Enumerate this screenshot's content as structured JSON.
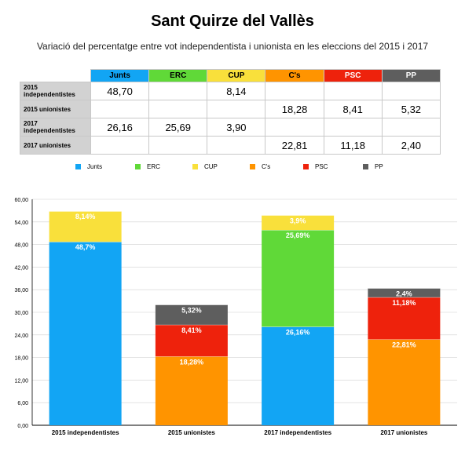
{
  "title": "Sant Quirze del Vallès",
  "subtitle": "Variació del percentatge entre vot independentista i unionista en les eleccions del 2015 i 2017",
  "parties": [
    {
      "name": "Junts",
      "color": "#12a5f4",
      "header_text_color": "#000000"
    },
    {
      "name": "ERC",
      "color": "#60d938",
      "header_text_color": "#000000"
    },
    {
      "name": "CUP",
      "color": "#f9e03b",
      "header_text_color": "#000000"
    },
    {
      "name": "C's",
      "color": "#ff9400",
      "header_text_color": "#000000"
    },
    {
      "name": "PSC",
      "color": "#ee220c",
      "header_text_color": "#ffffff"
    },
    {
      "name": "PP",
      "color": "#5e5e5e",
      "header_text_color": "#ffffff"
    }
  ],
  "table": {
    "rows": [
      {
        "label": "2015 independentistes",
        "cells": [
          "48,70",
          "",
          "8,14",
          "",
          "",
          ""
        ]
      },
      {
        "label": "2015 unionistes",
        "cells": [
          "",
          "",
          "",
          "18,28",
          "8,41",
          "5,32"
        ]
      },
      {
        "label": "2017 independentistes",
        "cells": [
          "26,16",
          "25,69",
          "3,90",
          "",
          "",
          ""
        ]
      },
      {
        "label": "2017 unionistes",
        "cells": [
          "",
          "",
          "",
          "22,81",
          "11,18",
          "2,40"
        ]
      }
    ]
  },
  "chart_data": {
    "type": "bar",
    "stacked": true,
    "categories": [
      "2015 independentistes",
      "2015 unionistes",
      "2017 independentistes",
      "2017 unionistes"
    ],
    "series": [
      {
        "name": "Junts",
        "values": [
          48.7,
          0,
          26.16,
          0
        ],
        "labels": [
          "48,7%",
          "",
          "26,16%",
          ""
        ]
      },
      {
        "name": "ERC",
        "values": [
          0,
          0,
          25.69,
          0
        ],
        "labels": [
          "",
          "",
          "25,69%",
          ""
        ]
      },
      {
        "name": "CUP",
        "values": [
          8.14,
          0,
          3.9,
          0
        ],
        "labels": [
          "8,14%",
          "",
          "3,9%",
          ""
        ]
      },
      {
        "name": "C's",
        "values": [
          0,
          18.28,
          0,
          22.81
        ],
        "labels": [
          "",
          "18,28%",
          "",
          "22,81%"
        ]
      },
      {
        "name": "PSC",
        "values": [
          0,
          8.41,
          0,
          11.18
        ],
        "labels": [
          "",
          "8,41%",
          "",
          "11,18%"
        ]
      },
      {
        "name": "PP",
        "values": [
          0,
          5.32,
          0,
          2.4
        ],
        "labels": [
          "",
          "5,32%",
          "",
          "2,4%"
        ]
      }
    ],
    "ylim": [
      0,
      60
    ],
    "yticks": [
      "0,00",
      "6,00",
      "12,00",
      "18,00",
      "24,00",
      "30,00",
      "36,00",
      "42,00",
      "48,00",
      "54,00",
      "60,00"
    ],
    "grid": true,
    "legend_position": "top-center"
  }
}
